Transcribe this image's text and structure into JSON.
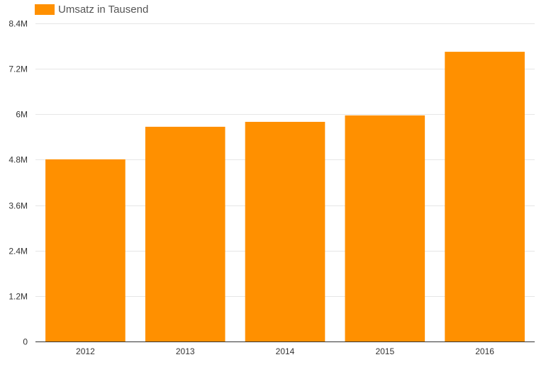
{
  "chart_data": {
    "type": "bar",
    "categories": [
      "2012",
      "2013",
      "2014",
      "2015",
      "2016"
    ],
    "series": [
      {
        "name": "Umsatz in Tausend",
        "values": [
          4.81,
          5.67,
          5.8,
          5.97,
          7.65
        ],
        "color": "#ff9000"
      }
    ],
    "ylim": [
      0,
      8.4
    ],
    "yticks": [
      0,
      1.2,
      2.4,
      3.6,
      4.8,
      6,
      7.2,
      8.4
    ],
    "ytick_labels": [
      "0",
      "1.2M",
      "2.4M",
      "3.6M",
      "4.8M",
      "6M",
      "7.2M",
      "8.4M"
    ],
    "grid": true,
    "legend_position": "top-left"
  }
}
